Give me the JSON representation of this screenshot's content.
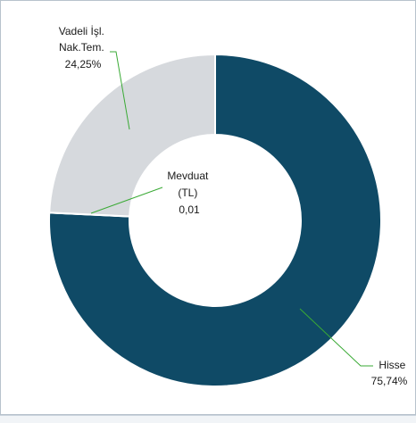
{
  "chart_data": {
    "type": "pie",
    "donut": true,
    "title": "",
    "legend": "none",
    "slices": [
      {
        "label_lines": [
          "Hisse"
        ],
        "value_text": "75,74%",
        "value": 75.74,
        "color": "#0f4a66"
      },
      {
        "label_lines": [
          "Mevduat",
          "(TL)"
        ],
        "value_text": "0,01",
        "value": 0.01,
        "color": "#ffffff"
      },
      {
        "label_lines": [
          "Vadeli İşl.",
          "Nak.Tem."
        ],
        "value_text": "24,25%",
        "value": 24.25,
        "color": "#d6d9dd"
      }
    ],
    "leader_color": "#3aaa35"
  }
}
